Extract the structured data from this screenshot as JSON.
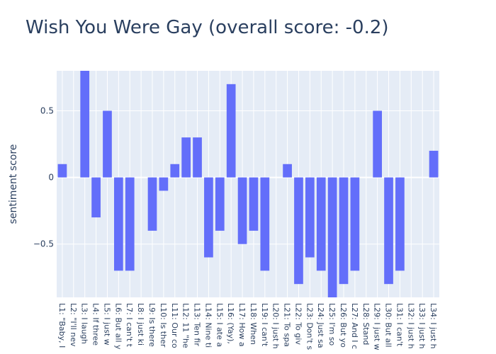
{
  "chart_data": {
    "type": "bar",
    "title": "Wish You Were Gay (overall score: -0.2)",
    "ylabel": "sentiment score",
    "xlabel": "",
    "ylim": [
      -0.9,
      0.8
    ],
    "yticks": [
      -0.5,
      0,
      0.5
    ],
    "ytick_labels": [
      "−0.5",
      "0",
      "0.5"
    ],
    "bar_color": "#636efa",
    "plot_bg": "#e5ecf6",
    "grid": true,
    "categories": [
      "L1: \"Baby, I",
      "L2: \"I'll nev",
      "L3: I laugh",
      "L4: If three",
      "L5: I just w",
      "L6: But all y",
      "L7: I can't t",
      "L8: I just ki",
      "L9: Is there",
      "L10: Is ther",
      "L11: Our co",
      "L12: 11 \"he",
      "L13: Ten fir",
      "L14: Nine ti",
      "L15: I ate a",
      "L16: (Yay),",
      "L17: How a",
      "L18: When",
      "L19: I can't",
      "L20: I just h",
      "L21: To spa",
      "L22: To giv",
      "L23: Don't s",
      "L24: Just sa",
      "L25: I'm so",
      "L26: But yo",
      "L27: And I c",
      "L28: Stand",
      "L29: I just w",
      "L30: But all",
      "L31: I can't",
      "L32: I just h",
      "L33: I just h",
      "L34: I just h"
    ],
    "values": [
      0.1,
      0.0,
      0.8,
      -0.3,
      0.5,
      -0.7,
      -0.7,
      0.0,
      -0.4,
      -0.1,
      0.1,
      0.3,
      0.3,
      -0.6,
      -0.4,
      0.7,
      -0.5,
      -0.4,
      -0.7,
      0.0,
      0.1,
      -0.8,
      -0.6,
      -0.7,
      -0.9,
      -0.8,
      -0.7,
      0.0,
      0.5,
      -0.8,
      -0.7,
      0.0,
      0.0,
      0.2
    ]
  }
}
